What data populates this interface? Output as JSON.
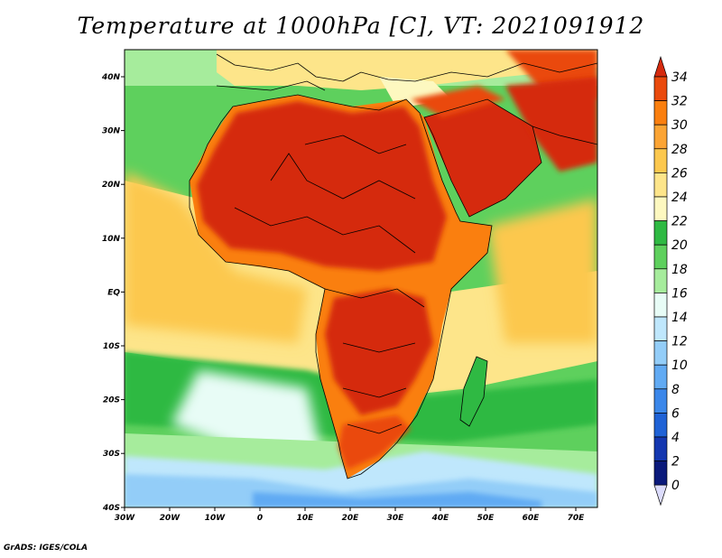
{
  "title": "Temperature at 1000hPa [C], VT: 2021091912",
  "credit": "GrADS: IGES/COLA",
  "x_ticks": [
    "30W",
    "20W",
    "10W",
    "0",
    "10E",
    "20E",
    "30E",
    "40E",
    "50E",
    "60E",
    "70E"
  ],
  "y_ticks": [
    "40N",
    "30N",
    "20N",
    "10N",
    "EQ",
    "10S",
    "20S",
    "30S",
    "40S"
  ],
  "colorbar": {
    "labels": [
      "34",
      "32",
      "30",
      "28",
      "26",
      "24",
      "22",
      "20",
      "18",
      "16",
      "14",
      "12",
      "10",
      "8",
      "6",
      "4",
      "2",
      "0"
    ],
    "colors": [
      "#d52a0e",
      "#ea4a0d",
      "#fa7f0f",
      "#fba434",
      "#fcc84e",
      "#fde58a",
      "#fdf8c0",
      "#2fb943",
      "#5ed05d",
      "#a6ec9c",
      "#e8fcf6",
      "#bfe7fc",
      "#93cdf8",
      "#61aaf3",
      "#3b87ea",
      "#1f62d6",
      "#1437b0",
      "#0b1a7b",
      "#dcdcfc"
    ]
  }
}
